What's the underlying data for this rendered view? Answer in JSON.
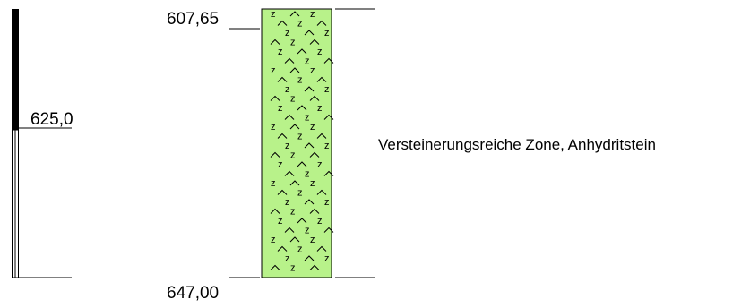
{
  "depths": {
    "top_label": "607,65",
    "bottom_label": "647,00",
    "core_marker_label": "625,0"
  },
  "layer": {
    "description": "Versteinerungsreiche Zone, Anhydritstein",
    "fill_color": "#b8f28a",
    "pattern_symbols": [
      "z",
      "^"
    ]
  },
  "core_bar": {
    "filled_color": "#000000",
    "empty_color": "#ffffff",
    "filled_fraction_shown": 0.39
  }
}
